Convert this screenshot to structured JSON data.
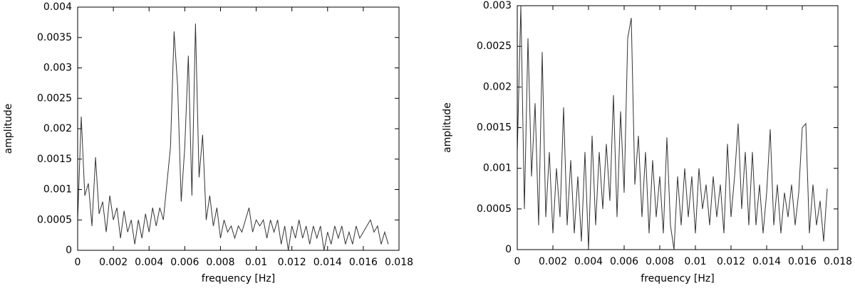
{
  "chart_data": [
    {
      "type": "line",
      "xlabel": "frequency [Hz]",
      "ylabel": "amplitude",
      "xlim": [
        0,
        0.018
      ],
      "ylim": [
        0,
        0.004
      ],
      "xticks": [
        0,
        0.002,
        0.004,
        0.006,
        0.008,
        0.01,
        0.012,
        0.014,
        0.016,
        0.018
      ],
      "yticks": [
        0,
        0.0005,
        0.001,
        0.0015,
        0.002,
        0.0025,
        0.003,
        0.0035,
        0.004
      ],
      "color": "#333333",
      "x": [
        0,
        0.0002,
        0.0004,
        0.0006,
        0.0008,
        0.001,
        0.0012,
        0.0014,
        0.0016,
        0.0018,
        0.002,
        0.0022,
        0.0024,
        0.0026,
        0.0028,
        0.003,
        0.0032,
        0.0034,
        0.0036,
        0.0038,
        0.004,
        0.0042,
        0.0044,
        0.0046,
        0.0048,
        0.005,
        0.0052,
        0.0054,
        0.0056,
        0.0058,
        0.006,
        0.0062,
        0.0064,
        0.0066,
        0.0068,
        0.007,
        0.0072,
        0.0074,
        0.0076,
        0.0078,
        0.008,
        0.0082,
        0.0084,
        0.0086,
        0.0088,
        0.009,
        0.0092,
        0.0094,
        0.0096,
        0.0098,
        0.01,
        0.0102,
        0.0104,
        0.0106,
        0.0108,
        0.011,
        0.0112,
        0.0114,
        0.0116,
        0.0118,
        0.012,
        0.0122,
        0.0124,
        0.0126,
        0.0128,
        0.013,
        0.0132,
        0.0134,
        0.0136,
        0.0138,
        0.014,
        0.0142,
        0.0144,
        0.0146,
        0.0148,
        0.015,
        0.0152,
        0.0154,
        0.0156,
        0.0158,
        0.016,
        0.0162,
        0.0164,
        0.0166,
        0.0168,
        0.017,
        0.0172,
        0.0174
      ],
      "values": [
        0.0005,
        0.0022,
        0.0009,
        0.0011,
        0.0004,
        0.00153,
        0.0006,
        0.0008,
        0.0003,
        0.0009,
        0.0005,
        0.0007,
        0.0002,
        0.00065,
        0.0003,
        0.0005,
        0.0001,
        0.0005,
        0.0002,
        0.0006,
        0.0003,
        0.0007,
        0.0004,
        0.0007,
        0.0005,
        0.0011,
        0.0017,
        0.0036,
        0.0027,
        0.0008,
        0.0017,
        0.0032,
        0.0009,
        0.00373,
        0.0012,
        0.0019,
        0.0005,
        0.0009,
        0.0004,
        0.0007,
        0.0002,
        0.0005,
        0.0003,
        0.0004,
        0.0002,
        0.0004,
        0.0003,
        0.0005,
        0.0007,
        0.0003,
        0.0005,
        0.0004,
        0.0005,
        0.0002,
        0.0005,
        0.0003,
        0.0005,
        0.0001,
        0.0004,
        0,
        0.0004,
        0.0002,
        0.0005,
        0.0002,
        0.0004,
        0.0001,
        0.0004,
        0.0002,
        0.0004,
        0,
        0.0003,
        0.0001,
        0.0004,
        0.0002,
        0.0004,
        0.0001,
        0.0003,
        0.0001,
        0.0004,
        0.0002,
        0.0003,
        0.0004,
        0.0005,
        0.0003,
        0.0004,
        0.0001,
        0.0003,
        0.0001
      ]
    },
    {
      "type": "line",
      "xlabel": "frequency [Hz]",
      "ylabel": "amplitude",
      "xlim": [
        0,
        0.018
      ],
      "ylim": [
        0,
        0.003
      ],
      "xticks": [
        0,
        0.002,
        0.004,
        0.006,
        0.008,
        0.01,
        0.012,
        0.014,
        0.016,
        0.018
      ],
      "yticks": [
        0,
        0.0005,
        0.001,
        0.0015,
        0.002,
        0.0025,
        0.003
      ],
      "color": "#333333",
      "x": [
        0,
        0.0002,
        0.0004,
        0.0006,
        0.0008,
        0.001,
        0.0012,
        0.0014,
        0.0016,
        0.0018,
        0.002,
        0.0022,
        0.0024,
        0.0026,
        0.0028,
        0.003,
        0.0032,
        0.0034,
        0.0036,
        0.0038,
        0.004,
        0.0042,
        0.0044,
        0.0046,
        0.0048,
        0.005,
        0.0052,
        0.0054,
        0.0056,
        0.0058,
        0.006,
        0.0062,
        0.0064,
        0.0066,
        0.0068,
        0.007,
        0.0072,
        0.0074,
        0.0076,
        0.0078,
        0.008,
        0.0082,
        0.0084,
        0.0086,
        0.0088,
        0.009,
        0.0092,
        0.0094,
        0.0096,
        0.0098,
        0.01,
        0.0102,
        0.0104,
        0.0106,
        0.0108,
        0.011,
        0.0112,
        0.0114,
        0.0116,
        0.0118,
        0.012,
        0.0122,
        0.0124,
        0.0126,
        0.0128,
        0.013,
        0.0132,
        0.0134,
        0.0136,
        0.0138,
        0.014,
        0.0142,
        0.0144,
        0.0146,
        0.0148,
        0.015,
        0.0152,
        0.0154,
        0.0156,
        0.0158,
        0.016,
        0.0162,
        0.0164,
        0.0166,
        0.0168,
        0.017,
        0.0172,
        0.0174
      ],
      "values": [
        0.0012,
        0.003,
        0.0005,
        0.0026,
        0.0009,
        0.0018,
        0.0003,
        0.00243,
        0.0004,
        0.0012,
        0.0002,
        0.001,
        0.0004,
        0.00175,
        0.0003,
        0.0011,
        0.0002,
        0.0009,
        0.0001,
        0.0012,
        0,
        0.0014,
        0.0003,
        0.0012,
        0.0005,
        0.0013,
        0.0006,
        0.0019,
        0.0004,
        0.0017,
        0.0007,
        0.0026,
        0.00285,
        0.0008,
        0.0014,
        0.0004,
        0.0012,
        0.0002,
        0.0011,
        0.0004,
        0.0009,
        0.0002,
        0.00138,
        0.0003,
        0,
        0.0009,
        0.0003,
        0.001,
        0.0004,
        0.0009,
        0.0002,
        0.001,
        0.0005,
        0.0008,
        0.0003,
        0.0009,
        0.0004,
        0.0008,
        0.0002,
        0.0013,
        0.0004,
        0.0009,
        0.00155,
        0.0005,
        0.0012,
        0.0003,
        0.0012,
        0.0003,
        0.0008,
        0.0002,
        0.0007,
        0.00148,
        0.0003,
        0.0008,
        0.0002,
        0.0007,
        0.0004,
        0.0008,
        0.0003,
        0.0007,
        0.0015,
        0.00155,
        0.0002,
        0.0008,
        0.0003,
        0.0006,
        0.0001,
        0.00075
      ]
    }
  ]
}
